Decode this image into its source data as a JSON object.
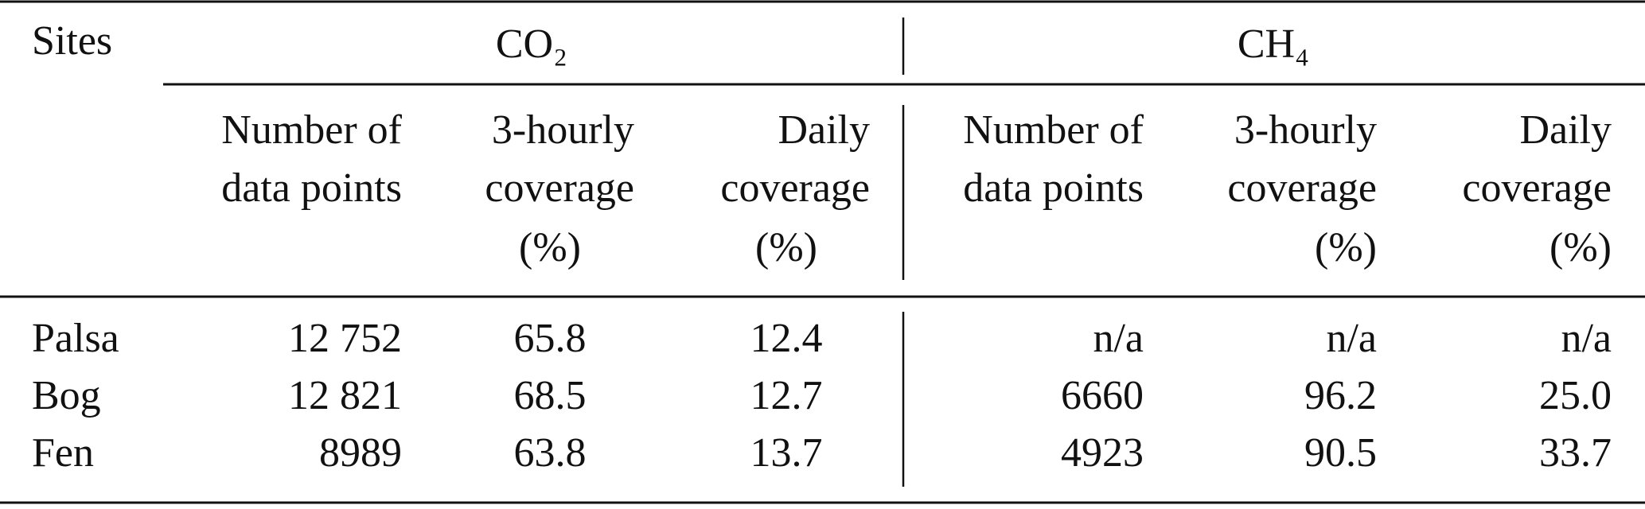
{
  "header": {
    "sites": "Sites",
    "groups": [
      {
        "label": "CO₂",
        "columns": [
          [
            "Number of",
            "data points"
          ],
          [
            "3-hourly",
            "coverage",
            "(%)"
          ],
          [
            "Daily",
            "coverage",
            "(%)"
          ]
        ]
      },
      {
        "label": "CH₄",
        "columns": [
          [
            "Number of",
            "data points"
          ],
          [
            "3-hourly",
            "coverage",
            "(%)"
          ],
          [
            "Daily",
            "coverage",
            "(%)"
          ]
        ]
      }
    ]
  },
  "table": {
    "rows": [
      [
        "Palsa",
        "12 752",
        "65.8",
        "12.4",
        "n/a",
        "n/a",
        "n/a"
      ],
      [
        "Bog",
        "12 821",
        "68.5",
        "12.7",
        "6660",
        "96.2",
        "25.0"
      ],
      [
        "Fen",
        "8989",
        "63.8",
        "13.7",
        "4923",
        "90.5",
        "33.7"
      ]
    ]
  }
}
